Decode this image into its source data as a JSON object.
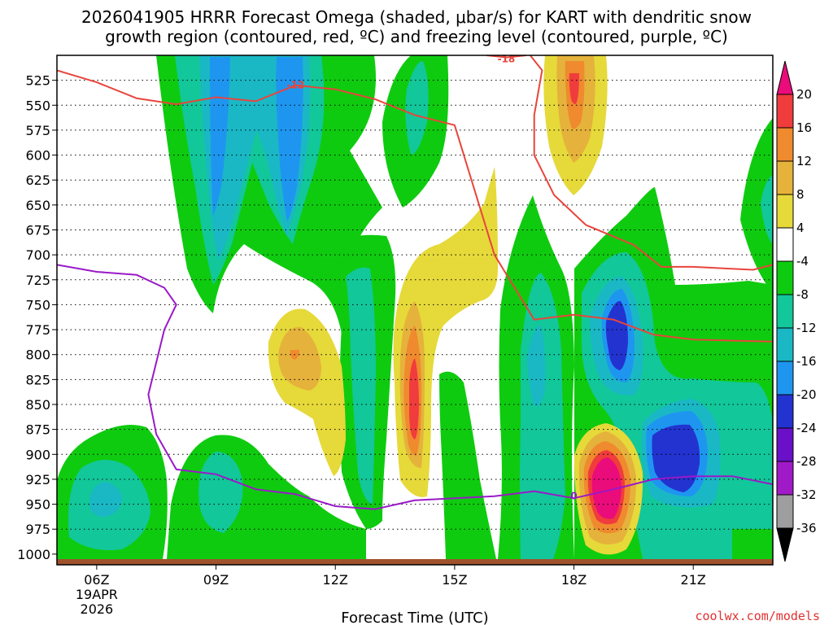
{
  "chart_data": {
    "type": "heatmap",
    "title_line1": "2026041905 HRRR Forecast Omega (shaded, μbar/s) for KART with dendritic snow",
    "title_line2": "growth region (contoured, red, ºC) and freezing level (contoured, purple, ºC)",
    "xlabel": "Forecast Time (UTC)",
    "credit": "coolwx.com/models",
    "x_ticks": [
      {
        "hour": 6,
        "label": "06Z",
        "sub1": "19APR",
        "sub2": "2026"
      },
      {
        "hour": 9,
        "label": "09Z"
      },
      {
        "hour": 12,
        "label": "12Z"
      },
      {
        "hour": 15,
        "label": "15Z"
      },
      {
        "hour": 18,
        "label": "18Z"
      },
      {
        "hour": 21,
        "label": "21Z"
      }
    ],
    "x_range_hours": [
      5,
      23
    ],
    "y_ticks": [
      525,
      550,
      575,
      600,
      625,
      650,
      675,
      700,
      725,
      750,
      775,
      800,
      825,
      850,
      875,
      900,
      925,
      950,
      975,
      1000
    ],
    "y_range_hpa": [
      500,
      1005
    ],
    "colorbar": {
      "labels": [
        "20",
        "16",
        "12",
        "8",
        "4",
        "-4",
        "-8",
        "-12",
        "-16",
        "-20",
        "-24",
        "-28",
        "-32",
        "-36"
      ],
      "bins": [
        {
          "color": "#ea0c7a"
        },
        {
          "color": "#f03c3c"
        },
        {
          "color": "#ef8a2e"
        },
        {
          "color": "#e5b23b"
        },
        {
          "color": "#e6d93a"
        },
        {
          "color": "#ffffff"
        },
        {
          "color": "#0fcb0f"
        },
        {
          "color": "#12c79a"
        },
        {
          "color": "#1ab8c5"
        },
        {
          "color": "#1e96f0"
        },
        {
          "color": "#2333d0"
        },
        {
          "color": "#6a10c8"
        },
        {
          "color": "#a11ac8"
        },
        {
          "color": "#9e9e9e"
        },
        {
          "color": "#000000"
        }
      ]
    },
    "contours": [
      {
        "label": "-12",
        "color": "#e8453c",
        "points": [
          [
            5.0,
            515
          ],
          [
            6.0,
            527
          ],
          [
            7.0,
            543
          ],
          [
            8.0,
            549
          ],
          [
            9.0,
            542
          ],
          [
            10.0,
            546
          ],
          [
            11.0,
            530
          ],
          [
            12.0,
            534
          ],
          [
            13.0,
            544
          ],
          [
            14.0,
            560
          ],
          [
            15.0,
            570
          ],
          [
            16.0,
            700
          ],
          [
            17.0,
            765
          ],
          [
            18.0,
            760
          ],
          [
            19.0,
            765
          ],
          [
            20.0,
            780
          ],
          [
            21.0,
            785
          ],
          [
            22.0,
            786
          ],
          [
            23.0,
            787
          ]
        ]
      },
      {
        "label": "-18",
        "color": "#e8453c",
        "points": [
          [
            15.8,
            500
          ],
          [
            16.3,
            502
          ],
          [
            16.8,
            500
          ]
        ]
      },
      {
        "label": "-18",
        "color": "#e8453c",
        "points": [
          [
            16.9,
            500
          ],
          [
            17.2,
            515
          ],
          [
            17.0,
            560
          ],
          [
            17.0,
            600
          ],
          [
            17.5,
            640
          ],
          [
            18.3,
            670
          ],
          [
            19.5,
            690
          ],
          [
            20.2,
            712
          ],
          [
            21.0,
            712
          ],
          [
            22.5,
            715
          ],
          [
            23.0,
            710
          ]
        ]
      },
      {
        "label": "0",
        "color": "#9a19c8",
        "points": [
          [
            5.0,
            710
          ],
          [
            6.0,
            717
          ],
          [
            7.0,
            720
          ],
          [
            7.7,
            733
          ],
          [
            8.0,
            750
          ],
          [
            7.7,
            775
          ],
          [
            7.3,
            840
          ],
          [
            7.5,
            880
          ],
          [
            8.0,
            915
          ],
          [
            9.0,
            920
          ],
          [
            10.0,
            935
          ],
          [
            11.0,
            940
          ],
          [
            12.0,
            952
          ],
          [
            13.0,
            955
          ],
          [
            14.0,
            946
          ],
          [
            15.0,
            944
          ],
          [
            16.0,
            942
          ],
          [
            17.0,
            937
          ],
          [
            18.0,
            944
          ],
          [
            19.0,
            935
          ],
          [
            20.0,
            925
          ],
          [
            21.0,
            922
          ],
          [
            22.0,
            922
          ],
          [
            23.0,
            930
          ]
        ]
      }
    ]
  }
}
